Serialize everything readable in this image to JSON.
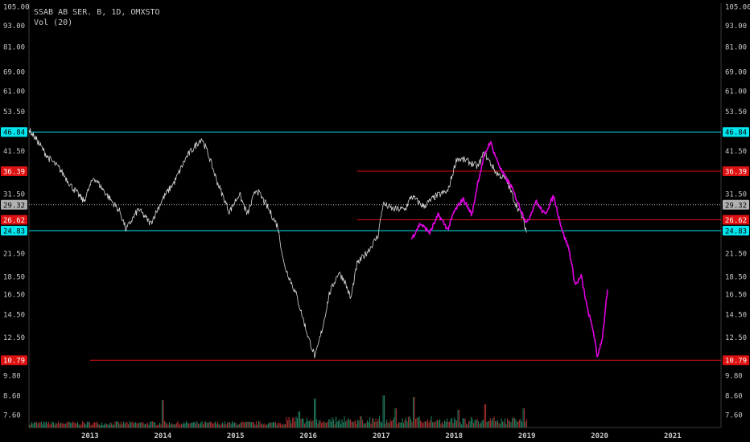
{
  "header": {
    "symbol_line": "SSAB AB SER. B, 1D, OMXSTO",
    "indicator_line": "Vol (20)"
  },
  "colors": {
    "background": "#000000",
    "price_line": "#d8d8d8",
    "overlay_line": "#e000e0",
    "support_line": "#00e5ee",
    "resistance_line": "#dd1111",
    "current_price_line": "#b0b0b0",
    "volume_up": "#1f7a5c",
    "volume_down": "#a12a2a",
    "axis_text": "#c8c8c8"
  },
  "chart_data": {
    "type": "line",
    "title": "SSAB AB SER. B, 1D, OMXSTO",
    "y_scale": "log",
    "ylim": [
      7.0,
      110.0
    ],
    "xlim": [
      "2012-03-01",
      "2021-09-01"
    ],
    "grid": false,
    "y_ticks": [
      "105.00",
      "93.00",
      "81.00",
      "69.00",
      "61.00",
      "53.50",
      "46.84",
      "41.50",
      "36.39",
      "31.50",
      "29.32",
      "26.62",
      "24.83",
      "21.50",
      "18.50",
      "16.50",
      "14.50",
      "12.50",
      "10.79",
      "9.80",
      "8.60",
      "7.60"
    ],
    "x_ticks": [
      "2013",
      "2014",
      "2015",
      "2016",
      "2017",
      "2018",
      "2019",
      "2020",
      "2021"
    ],
    "series": [
      {
        "color": "#d8d8d8",
        "x": [
          "2012-03-01",
          "2012-04-15",
          "2012-06-01",
          "2012-08-01",
          "2012-10-01",
          "2012-12-01",
          "2013-01-20",
          "2013-04-01",
          "2013-06-01",
          "2013-07-01",
          "2013-09-01",
          "2013-11-01",
          "2014-01-01",
          "2014-03-01",
          "2014-05-01",
          "2014-07-15",
          "2014-08-15",
          "2014-10-01",
          "2014-12-01",
          "2015-01-20",
          "2015-03-01",
          "2015-04-15",
          "2015-06-01",
          "2015-08-01",
          "2015-09-01",
          "2015-11-01",
          "2016-01-01",
          "2016-02-05",
          "2016-03-15",
          "2016-04-15",
          "2016-06-01",
          "2016-07-01",
          "2016-08-01",
          "2016-09-01",
          "2016-11-01",
          "2016-12-15",
          "2017-01-10",
          "2017-03-01",
          "2017-05-01",
          "2017-06-01",
          "2017-08-01",
          "2017-10-01",
          "2017-12-01",
          "2018-01-15",
          "2018-03-01",
          "2018-05-01",
          "2018-06-01",
          "2018-08-01",
          "2018-09-20",
          "2018-11-01",
          "2018-12-10",
          "2019-01-01"
        ],
        "y": [
          47.5,
          44,
          40,
          37,
          33,
          30,
          35,
          31,
          28,
          25,
          28.5,
          26,
          30.5,
          34,
          40,
          45,
          41,
          34,
          28,
          31.5,
          27.5,
          32.5,
          29.5,
          25.5,
          20,
          16.5,
          12.5,
          11.0,
          13.5,
          16.5,
          19,
          18,
          16,
          20,
          22,
          24,
          29.5,
          28.5,
          28.5,
          31,
          29,
          31,
          32,
          39.5,
          39,
          37.5,
          41,
          36,
          34.5,
          30,
          27,
          24.5
        ]
      },
      {
        "color": "#e000e0",
        "x": [
          "2017-06-01",
          "2017-07-15",
          "2017-09-01",
          "2017-10-15",
          "2017-12-01",
          "2018-01-01",
          "2018-02-15",
          "2018-04-01",
          "2018-05-01",
          "2018-06-01",
          "2018-07-01",
          "2018-08-01",
          "2018-09-01",
          "2018-10-15",
          "2018-12-01",
          "2019-01-01",
          "2019-02-15",
          "2019-04-01",
          "2019-05-15",
          "2019-07-01",
          "2019-08-01",
          "2019-09-01",
          "2019-10-01",
          "2019-11-01",
          "2019-12-01",
          "2019-12-20",
          "2020-01-15",
          "2020-02-10"
        ],
        "y": [
          23.5,
          26,
          24.5,
          27.5,
          25,
          28,
          30.5,
          27.5,
          34,
          40,
          44,
          39.5,
          36,
          33,
          28.5,
          26,
          30,
          27.5,
          31,
          24.5,
          22,
          17.5,
          18.5,
          15,
          13,
          11.0,
          12.5,
          17
        ]
      }
    ],
    "horizontal_levels": [
      {
        "value": 46.84,
        "label": "46.84",
        "color": "#00e5ee",
        "x_start": "2012-03-01"
      },
      {
        "value": 36.39,
        "label": "36.39",
        "color": "#dd1111",
        "x_start": "2016-09-01"
      },
      {
        "value": 29.32,
        "label": "29.32",
        "color": "#b0b0b0",
        "x_start": "2012-03-01",
        "dotted": true
      },
      {
        "value": 26.62,
        "label": "26.62",
        "color": "#dd1111",
        "x_start": "2016-09-01"
      },
      {
        "value": 24.83,
        "label": "24.83",
        "color": "#00e5ee",
        "x_start": "2012-03-01"
      },
      {
        "value": 10.79,
        "label": "10.79",
        "color": "#dd1111",
        "x_start": "2013-01-01"
      }
    ],
    "volume": {
      "x_range": [
        "2012-03-01",
        "2019-01-01"
      ],
      "peaks": [
        {
          "x": "2014-01-01",
          "level": 0.85
        },
        {
          "x": "2015-11-15",
          "level": 0.5
        },
        {
          "x": "2016-02-01",
          "level": 0.9
        },
        {
          "x": "2017-01-10",
          "level": 1.0
        },
        {
          "x": "2017-03-15",
          "level": 0.6
        },
        {
          "x": "2017-06-10",
          "level": 0.95
        },
        {
          "x": "2018-01-20",
          "level": 0.55
        },
        {
          "x": "2018-06-01",
          "level": 0.72
        },
        {
          "x": "2018-12-15",
          "level": 0.6
        }
      ]
    }
  }
}
